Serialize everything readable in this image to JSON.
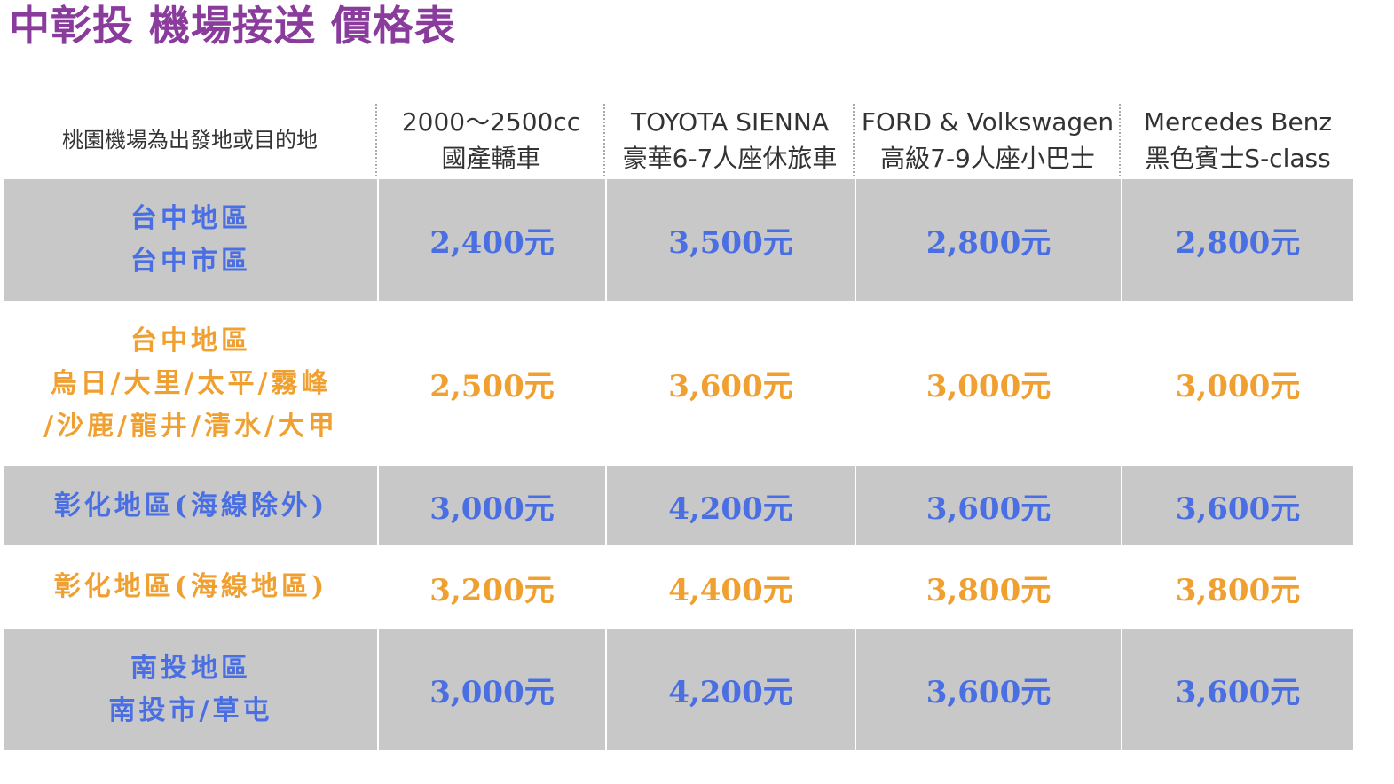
{
  "header": {
    "title": "中彰投 機場接送 價格表"
  },
  "table": {
    "columns": [
      {
        "lines": [
          "桃園機場為出發地或目的地"
        ]
      },
      {
        "lines": [
          "2000～2500cc",
          "國產轎車"
        ]
      },
      {
        "lines": [
          "TOYOTA SIENNA",
          "豪華6-7人座休旅車"
        ]
      },
      {
        "lines": [
          "FORD & Volkswagen",
          "高級7-9人座小巴士"
        ]
      },
      {
        "lines": [
          "Mercedes Benz",
          "黑色賓士S-class"
        ]
      }
    ],
    "rows": [
      {
        "label": [
          "台中地區",
          "台中市區"
        ],
        "prices": [
          "2,400元",
          "3,500元",
          "2,800元",
          "2,800元"
        ]
      },
      {
        "label": [
          "台中地區",
          "烏日/大里/太平/霧峰",
          "/沙鹿/龍井/清水/大甲"
        ],
        "prices": [
          "2,500元",
          "3,600元",
          "3,000元",
          "3,000元"
        ]
      },
      {
        "label": [
          "彰化地區(海線除外)"
        ],
        "prices": [
          "3,000元",
          "4,200元",
          "3,600元",
          "3,600元"
        ]
      },
      {
        "label": [
          "彰化地區(海線地區)"
        ],
        "prices": [
          "3,200元",
          "4,400元",
          "3,800元",
          "3,800元"
        ]
      },
      {
        "label": [
          "南投地區",
          "南投市/草屯"
        ],
        "prices": [
          "3,000元",
          "4,200元",
          "3,600元",
          "3,600元"
        ]
      }
    ]
  }
}
